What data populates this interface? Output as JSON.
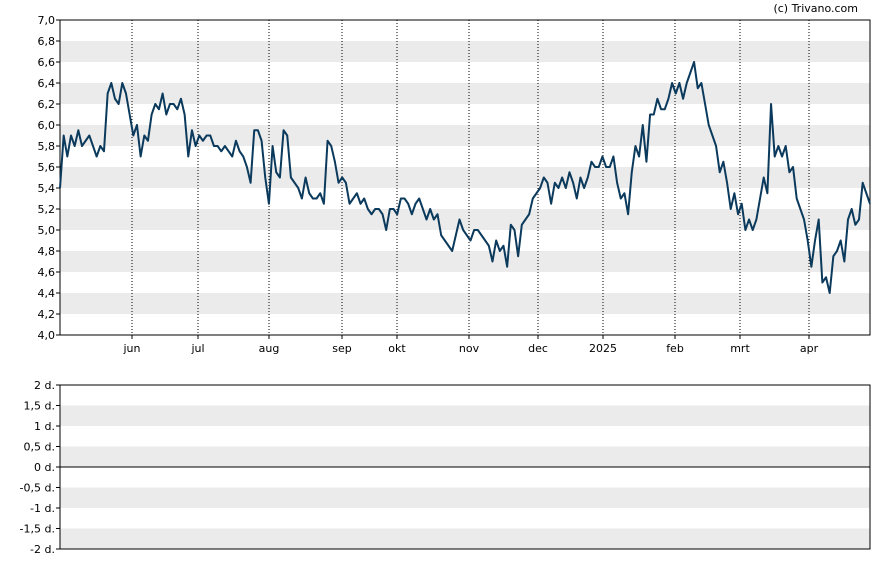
{
  "copyright": "(c) Trivano.com",
  "chart_data": [
    {
      "type": "line",
      "x_labels": [
        "jun",
        "jul",
        "aug",
        "sep",
        "okt",
        "nov",
        "dec",
        "2025",
        "feb",
        "mrt",
        "apr"
      ],
      "y_tick_labels": [
        "4,0",
        "4,2",
        "4,4",
        "4,6",
        "4,8",
        "5,0",
        "5,2",
        "5,4",
        "5,6",
        "5,8",
        "6,0",
        "6,2",
        "6,4",
        "6,6",
        "6,8",
        "7,0"
      ],
      "ylim": [
        4.0,
        7.0
      ],
      "grid": "alternating horizontal bands, dotted vertical month lines",
      "series": [
        {
          "color": "#0b3a5c",
          "values": [
            5.4,
            5.9,
            5.7,
            5.9,
            5.8,
            5.95,
            5.8,
            5.85,
            5.9,
            5.8,
            5.7,
            5.8,
            5.75,
            6.3,
            6.4,
            6.25,
            6.2,
            6.4,
            6.3,
            6.1,
            5.9,
            6.0,
            5.7,
            5.9,
            5.85,
            6.1,
            6.2,
            6.15,
            6.3,
            6.1,
            6.2,
            6.2,
            6.15,
            6.25,
            6.1,
            5.7,
            5.95,
            5.8,
            5.9,
            5.85,
            5.9,
            5.9,
            5.8,
            5.8,
            5.75,
            5.8,
            5.75,
            5.7,
            5.85,
            5.75,
            5.7,
            5.6,
            5.45,
            5.95,
            5.95,
            5.85,
            5.5,
            5.25,
            5.8,
            5.55,
            5.5,
            5.95,
            5.9,
            5.5,
            5.45,
            5.4,
            5.3,
            5.5,
            5.35,
            5.3,
            5.3,
            5.35,
            5.25,
            5.85,
            5.8,
            5.65,
            5.45,
            5.5,
            5.45,
            5.25,
            5.3,
            5.35,
            5.25,
            5.3,
            5.2,
            5.15,
            5.2,
            5.2,
            5.15,
            5.0,
            5.2,
            5.2,
            5.15,
            5.3,
            5.3,
            5.25,
            5.15,
            5.25,
            5.3,
            5.2,
            5.1,
            5.2,
            5.1,
            5.15,
            4.95,
            4.9,
            4.85,
            4.8,
            4.95,
            5.1,
            5.0,
            4.95,
            4.9,
            5.0,
            5.0,
            4.95,
            4.9,
            4.85,
            4.7,
            4.9,
            4.8,
            4.85,
            4.65,
            5.05,
            5.0,
            4.75,
            5.05,
            5.1,
            5.15,
            5.3,
            5.35,
            5.4,
            5.5,
            5.45,
            5.25,
            5.45,
            5.4,
            5.5,
            5.4,
            5.55,
            5.45,
            5.3,
            5.5,
            5.4,
            5.5,
            5.65,
            5.6,
            5.6,
            5.7,
            5.6,
            5.6,
            5.7,
            5.45,
            5.3,
            5.35,
            5.15,
            5.55,
            5.8,
            5.7,
            6.0,
            5.65,
            6.1,
            6.1,
            6.25,
            6.15,
            6.15,
            6.25,
            6.4,
            6.3,
            6.4,
            6.25,
            6.4,
            6.5,
            6.6,
            6.35,
            6.4,
            6.2,
            6.0,
            5.9,
            5.8,
            5.55,
            5.65,
            5.45,
            5.2,
            5.35,
            5.15,
            5.25,
            5.0,
            5.1,
            5.0,
            5.1,
            5.3,
            5.5,
            5.35,
            6.2,
            5.7,
            5.8,
            5.7,
            5.8,
            5.55,
            5.6,
            5.3,
            5.2,
            5.1,
            4.9,
            4.65,
            4.9,
            5.1,
            4.5,
            4.55,
            4.4,
            4.75,
            4.8,
            4.9,
            4.7,
            5.1,
            5.2,
            5.05,
            5.1,
            5.45,
            5.35,
            5.25
          ]
        }
      ]
    },
    {
      "type": "line",
      "y_tick_labels": [
        "2 d.",
        "1,5 d.",
        "1 d.",
        "0,5 d.",
        "0 d.",
        "-0,5 d.",
        "-1 d.",
        "-1,5 d.",
        "-2 d."
      ],
      "ylim": [
        -2,
        2
      ],
      "grid": "alternating horizontal bands",
      "baseline": 0
    }
  ]
}
